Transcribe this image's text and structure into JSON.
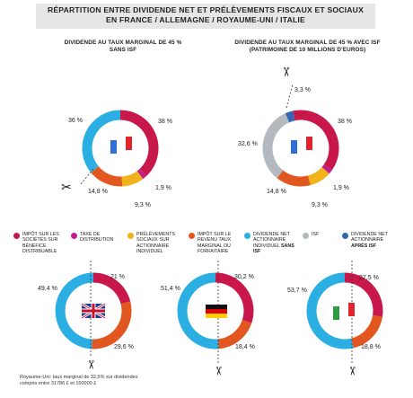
{
  "chart_data": {
    "type": "pie",
    "title_line1": "RÉPARTITION ENTRE DIVIDENDE NET ET PRÉLÈVEMENTS FISCAUX ET SOCIAUX",
    "title_line2": "EN FRANCE / ALLEMAGNE / ROYAUME-UNI / ITALIE",
    "subtitles": [
      {
        "line1": "DIVIDENDE AU TAUX MARGINAL DE 45 %",
        "line2": "SANS ISF"
      },
      {
        "line1": "DIVIDENDE AU TAUX MARGINAL DE 45 % AVEC ISF",
        "line2": "(PATRIMOINE DE 10 MILLIONS D'EUROS)"
      }
    ],
    "legend": [
      "Impôt sur les sociétés sur bénéfice distribuable",
      "Taxe de distribution",
      "Prélèvements sociaux sur actionnaire individuel",
      "Impôt sur le revenu taux marginal ou forfaitaire",
      "Dividende net actionnaire individuel",
      "ISF",
      "Dividende net actionnaire"
    ],
    "legend_strong": [
      "sans ISF",
      "après ISF"
    ],
    "charts": [
      {
        "country": "France",
        "flag": "flag-france-icon",
        "slices": [
          {
            "name": "Impôt sur les sociétés",
            "value": 38,
            "label": "38 %",
            "color": "#c8174b"
          },
          {
            "name": "Taxe de distribution",
            "value": 1.9,
            "label": "1,9 %",
            "color": "#c31e8c"
          },
          {
            "name": "Prélèvements sociaux",
            "value": 9.3,
            "label": "9,3 %",
            "color": "#f2b21c"
          },
          {
            "name": "Impôt sur le revenu",
            "value": 14.8,
            "label": "14,8 %",
            "color": "#e2561f"
          },
          {
            "name": "ISF",
            "value": 0,
            "label": "",
            "color": "#b3b9bf"
          },
          {
            "name": "Dividende net sans ISF",
            "value": 36,
            "label": "36 %",
            "color": "#2baee2"
          }
        ]
      },
      {
        "country": "France",
        "flag": "flag-france-icon",
        "slices": [
          {
            "name": "Impôt sur les sociétés",
            "value": 38,
            "label": "38 %",
            "color": "#c8174b"
          },
          {
            "name": "Taxe de distribution",
            "value": 1.9,
            "label": "1,9 %",
            "color": "#c31e8c"
          },
          {
            "name": "Prélèvements sociaux",
            "value": 9.3,
            "label": "9,3 %",
            "color": "#f2b21c"
          },
          {
            "name": "Impôt sur le revenu",
            "value": 14.8,
            "label": "14,8 %",
            "color": "#e2561f"
          },
          {
            "name": "ISF",
            "value": 32.6,
            "label": "32,6 %",
            "color": "#b3b9bf"
          },
          {
            "name": "Dividende net après ISF",
            "value": 3.3,
            "label": "3,3 %",
            "color": "#3467b3"
          }
        ]
      },
      {
        "country": "Royaume-Uni",
        "flag": "flag-uk-icon",
        "slices": [
          {
            "name": "Impôt sur les sociétés",
            "value": 21,
            "label": "21 %",
            "color": "#c8174b"
          },
          {
            "name": "Impôt sur le revenu",
            "value": 29.6,
            "label": "29,6 %",
            "color": "#e2561f"
          },
          {
            "name": "Dividende net sans ISF",
            "value": 49.4,
            "label": "49,4 %",
            "color": "#2baee2"
          }
        ]
      },
      {
        "country": "Allemagne",
        "flag": "flag-germany-icon",
        "slices": [
          {
            "name": "Impôt sur les sociétés",
            "value": 30.2,
            "label": "30,2 %",
            "color": "#c8174b"
          },
          {
            "name": "Impôt sur le revenu",
            "value": 18.4,
            "label": "18,4 %",
            "color": "#e2561f"
          },
          {
            "name": "Dividende net sans ISF",
            "value": 51.4,
            "label": "51,4 %",
            "color": "#2baee2"
          }
        ]
      },
      {
        "country": "Italie",
        "flag": "flag-italy-icon",
        "slices": [
          {
            "name": "Impôt sur les sociétés",
            "value": 27.5,
            "label": "27,5 %",
            "color": "#c8174b"
          },
          {
            "name": "Impôt sur le revenu",
            "value": 18.8,
            "label": "18,8 %",
            "color": "#e2561f"
          },
          {
            "name": "Dividende net sans ISF",
            "value": 53.7,
            "label": "53,7 %",
            "color": "#2baee2"
          }
        ]
      }
    ],
    "footnote_line1": "Royaume-Uni: taux marginal de 32,5% sur dividendes",
    "footnote_line2": "compris entre 31786 £ et 150000 £"
  }
}
